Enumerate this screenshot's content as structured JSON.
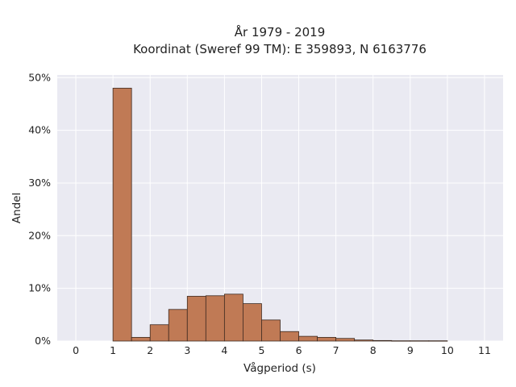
{
  "chart_data": {
    "type": "bar",
    "title": "År 1979 - 2019",
    "subtitle": "Koordinat (Sweref 99 TM): E 359893, N 6163776",
    "xlabel": "Vågperiod (s)",
    "ylabel": "Andel",
    "x_ticks": [
      "0",
      "1",
      "2",
      "3",
      "4",
      "5",
      "6",
      "7",
      "8",
      "9",
      "10",
      "11"
    ],
    "y_ticks": [
      "0%",
      "10%",
      "20%",
      "30%",
      "40%",
      "50%"
    ],
    "xlim": [
      -0.5,
      11.5
    ],
    "ylim": [
      0,
      50.5
    ],
    "grid": true,
    "bin_width": 0.5,
    "bins": [
      {
        "start": 1.0,
        "value": 48.0
      },
      {
        "start": 1.5,
        "value": 0.7
      },
      {
        "start": 2.0,
        "value": 3.1
      },
      {
        "start": 2.5,
        "value": 6.0
      },
      {
        "start": 3.0,
        "value": 8.5
      },
      {
        "start": 3.5,
        "value": 8.6
      },
      {
        "start": 4.0,
        "value": 8.9
      },
      {
        "start": 4.5,
        "value": 7.1
      },
      {
        "start": 5.0,
        "value": 4.0
      },
      {
        "start": 5.5,
        "value": 1.8
      },
      {
        "start": 6.0,
        "value": 0.9
      },
      {
        "start": 6.5,
        "value": 0.7
      },
      {
        "start": 7.0,
        "value": 0.5
      },
      {
        "start": 7.5,
        "value": 0.2
      },
      {
        "start": 8.0,
        "value": 0.1
      },
      {
        "start": 8.5,
        "value": 0.05
      },
      {
        "start": 9.0,
        "value": 0.05
      },
      {
        "start": 9.5,
        "value": 0.05
      }
    ],
    "colors": {
      "bar_fill": "#c07a55",
      "bar_edge": "#3d2a20",
      "plot_background": "#eaeaf2",
      "grid": "#ffffff"
    }
  }
}
